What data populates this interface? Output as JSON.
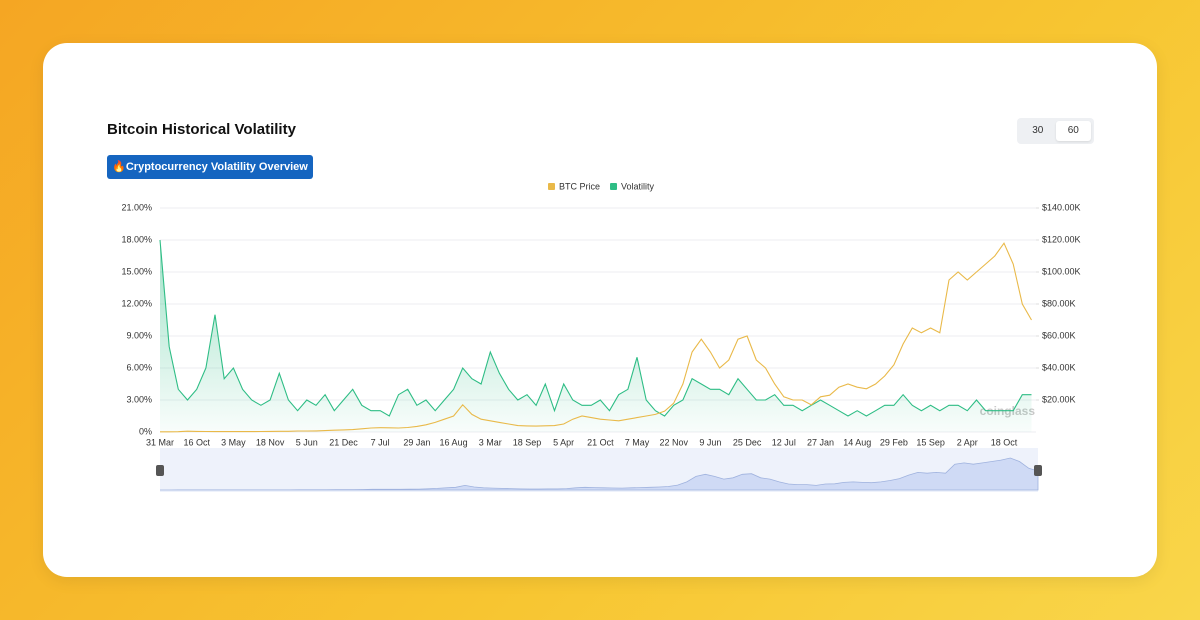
{
  "chart_data": {
    "type": "line",
    "title": "Bitcoin Historical Volatility",
    "button": "🔥Cryptocurrency Volatility Overview",
    "periods": [
      "30",
      "60"
    ],
    "watermark": "coinglass",
    "categories": [
      "31 Mar",
      null,
      null,
      null,
      "16 Oct",
      null,
      null,
      null,
      "3 May",
      null,
      null,
      null,
      "18 Nov",
      null,
      null,
      null,
      "5 Jun",
      null,
      null,
      null,
      "21 Dec",
      null,
      null,
      null,
      "7 Jul",
      null,
      null,
      null,
      "29 Jan",
      null,
      null,
      null,
      "16 Aug",
      null,
      null,
      null,
      "3 Mar",
      null,
      null,
      null,
      "18 Sep",
      null,
      null,
      null,
      "5 Apr",
      null,
      null,
      null,
      "21 Oct",
      null,
      null,
      null,
      "7 May",
      null,
      null,
      null,
      "22 Nov",
      null,
      null,
      null,
      "9 Jun",
      null,
      null,
      null,
      "25 Dec",
      null,
      null,
      null,
      "12 Jul",
      null,
      null,
      null,
      "27 Jan",
      null,
      null,
      null,
      "14 Aug",
      null,
      null,
      null,
      "29 Feb",
      null,
      null,
      null,
      "15 Sep",
      null,
      null,
      null,
      "2 Apr",
      null,
      null,
      null,
      "18 Oct",
      null,
      null,
      null
    ],
    "series": [
      {
        "name": "BTC Price",
        "color": "#e9b949",
        "axis": "y2",
        "area": false,
        "values": [
          100,
          130,
          200,
          500,
          400,
          300,
          250,
          250,
          230,
          240,
          260,
          300,
          380,
          420,
          450,
          600,
          650,
          700,
          900,
          1100,
          1300,
          1500,
          2000,
          2500,
          2700,
          2600,
          2500,
          2800,
          3500,
          4500,
          6000,
          8000,
          10000,
          17000,
          11000,
          8000,
          7000,
          6000,
          5000,
          4000,
          3800,
          3700,
          3900,
          4000,
          5000,
          8000,
          10000,
          9000,
          8000,
          7500,
          7000,
          8000,
          9000,
          10000,
          11000,
          13000,
          18000,
          30000,
          50000,
          58000,
          50000,
          40000,
          45000,
          58000,
          60000,
          45000,
          40000,
          30000,
          22000,
          20000,
          20000,
          17000,
          22000,
          23000,
          28000,
          30000,
          28000,
          27000,
          30000,
          35000,
          42000,
          55000,
          65000,
          62000,
          65000,
          62000,
          95000,
          100000,
          95000,
          100000,
          105000,
          110000,
          118000,
          105000,
          80000,
          70000
        ]
      },
      {
        "name": "Volatility",
        "color": "#2ebd85",
        "area": true,
        "values": [
          18,
          8,
          4,
          3,
          4,
          6,
          11,
          5,
          6,
          4,
          3,
          2.5,
          3,
          5.5,
          3,
          2,
          3,
          2.5,
          3.5,
          2,
          3,
          4,
          2.5,
          2,
          2,
          1.5,
          3.5,
          4,
          2.5,
          3,
          2,
          3,
          4,
          6,
          5,
          4.5,
          7.5,
          5.5,
          4,
          3,
          3.5,
          2.5,
          4.5,
          2,
          4.5,
          3,
          2.5,
          2.5,
          3,
          2,
          3.5,
          4,
          7,
          3,
          2,
          1.5,
          2.5,
          3,
          5,
          4.5,
          4,
          4,
          3.5,
          5,
          4,
          3,
          3,
          3.5,
          2.5,
          2.5,
          2,
          2.5,
          3,
          2.5,
          2,
          1.5,
          2,
          1.5,
          2,
          2.5,
          2.5,
          3.5,
          2.5,
          2,
          2.5,
          2,
          2.5,
          2.5,
          2,
          3,
          2,
          2,
          2,
          2,
          3.5,
          3.5
        ]
      }
    ],
    "ylim": [
      0,
      21
    ],
    "yticks": [
      {
        "value": 0,
        "label": "0%"
      },
      {
        "value": 3,
        "label": "3.00%"
      },
      {
        "value": 6,
        "label": "6.00%"
      },
      {
        "value": 9,
        "label": "9.00%"
      },
      {
        "value": 12,
        "label": "12.00%"
      },
      {
        "value": 15,
        "label": "15.00%"
      },
      {
        "value": 18,
        "label": "18.00%"
      },
      {
        "value": 21,
        "label": "21.00%"
      }
    ],
    "y2lim": [
      0,
      140000
    ],
    "y2ticks": [
      {
        "value": 20000,
        "label": "$20.00K"
      },
      {
        "value": 40000,
        "label": "$40.00K"
      },
      {
        "value": 60000,
        "label": "$60.00K"
      },
      {
        "value": 80000,
        "label": "$80.00K"
      },
      {
        "value": 100000,
        "label": "$100.00K"
      },
      {
        "value": 120000,
        "label": "$120.00K"
      },
      {
        "value": 140000,
        "label": "$140.00K"
      }
    ],
    "grid": true
  }
}
